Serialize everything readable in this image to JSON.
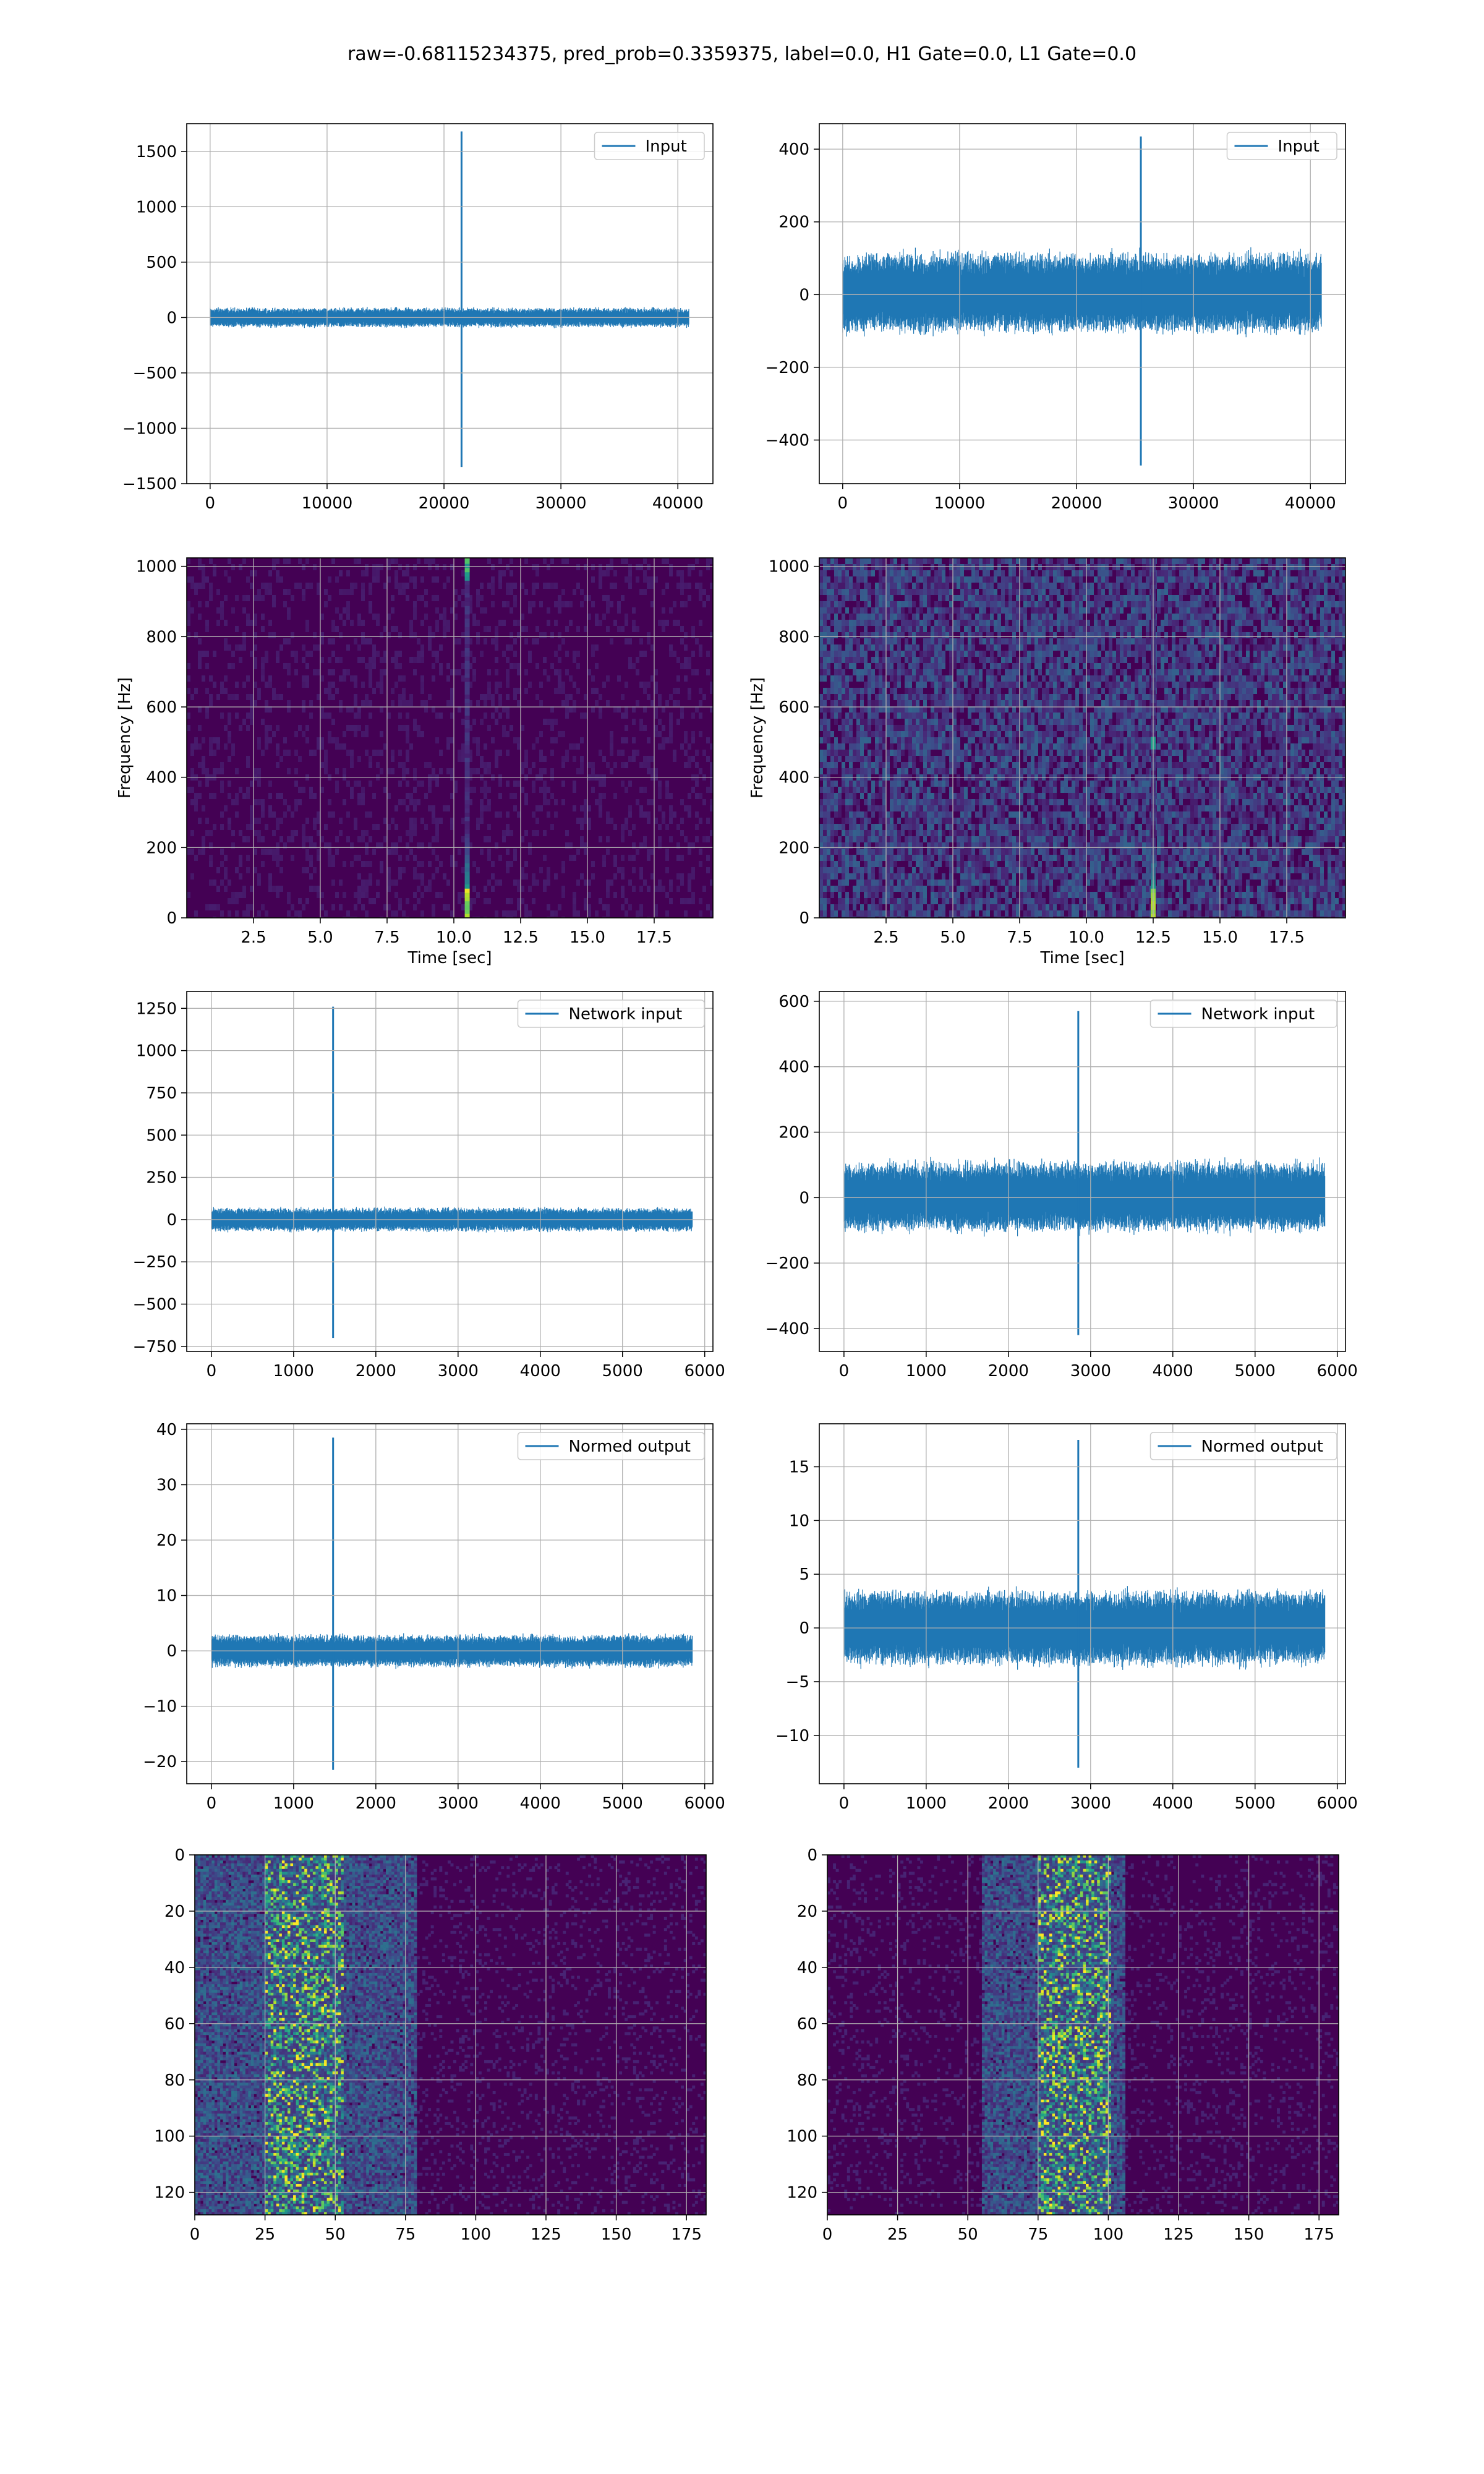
{
  "figure_title": "raw=-0.68115234375, pred_prob=0.3359375, label=0.0, H1 Gate=0.0, L1 Gate=0.0",
  "colors": {
    "line": "#1f77b4",
    "grid": "#b0b0b0",
    "viridis_bg": "#440154"
  },
  "chart_data": [
    {
      "id": "input-left",
      "type": "line",
      "legend": "Input",
      "legend_loc": "upper-right",
      "xlim": [
        -2000,
        43000
      ],
      "ylim": [
        -1500,
        1750
      ],
      "xticks": [
        0,
        10000,
        20000,
        30000,
        40000
      ],
      "yticks": [
        -1500,
        -1000,
        -500,
        0,
        500,
        1000,
        1500
      ],
      "noise_band": [
        -75,
        75
      ],
      "x_extent": [
        0,
        40960
      ],
      "spikes": [
        {
          "x": 21500,
          "ymin": -1350,
          "ymax": 1680
        }
      ]
    },
    {
      "id": "input-right",
      "type": "line",
      "legend": "Input",
      "legend_loc": "upper-right",
      "xlim": [
        -2000,
        43000
      ],
      "ylim": [
        -520,
        470
      ],
      "xticks": [
        0,
        10000,
        20000,
        30000,
        40000
      ],
      "yticks": [
        -400,
        -200,
        0,
        200,
        400
      ],
      "noise_band": [
        -90,
        100
      ],
      "x_extent": [
        0,
        40960
      ],
      "spikes": [
        {
          "x": 25500,
          "ymin": -470,
          "ymax": 435
        }
      ]
    },
    {
      "id": "spec-left",
      "type": "heatmap",
      "xlabel": "Time [sec]",
      "ylabel": "Frequency [Hz]",
      "xlim": [
        0,
        19.7
      ],
      "ylim": [
        0,
        1024
      ],
      "xticks": [
        2.5,
        5.0,
        7.5,
        10.0,
        12.5,
        15.0,
        17.5
      ],
      "yticks": [
        0,
        200,
        400,
        600,
        800,
        1000
      ],
      "burst_time": 10.5,
      "noise_level": 0.05
    },
    {
      "id": "spec-right",
      "type": "heatmap",
      "xlabel": "Time [sec]",
      "ylabel": "Frequency [Hz]",
      "xlim": [
        0,
        19.7
      ],
      "ylim": [
        0,
        1024
      ],
      "xticks": [
        2.5,
        5.0,
        7.5,
        10.0,
        12.5,
        15.0,
        17.5
      ],
      "yticks": [
        0,
        200,
        400,
        600,
        800,
        1000
      ],
      "burst_time": 12.5,
      "noise_level": 0.2
    },
    {
      "id": "network-left",
      "type": "line",
      "legend": "Network input",
      "legend_loc": "upper-right",
      "xlim": [
        -300,
        6100
      ],
      "ylim": [
        -780,
        1350
      ],
      "xticks": [
        0,
        1000,
        2000,
        3000,
        4000,
        5000,
        6000
      ],
      "yticks": [
        -750,
        -500,
        -250,
        0,
        250,
        500,
        750,
        1000,
        1250
      ],
      "noise_band": [
        -60,
        60
      ],
      "x_extent": [
        0,
        5850
      ],
      "spikes": [
        {
          "x": 1480,
          "ymin": -700,
          "ymax": 1260
        }
      ]
    },
    {
      "id": "network-right",
      "type": "line",
      "legend": "Network input",
      "legend_loc": "upper-right",
      "xlim": [
        -300,
        6100
      ],
      "ylim": [
        -470,
        630
      ],
      "xticks": [
        0,
        1000,
        2000,
        3000,
        4000,
        5000,
        6000
      ],
      "yticks": [
        -400,
        -200,
        0,
        200,
        400,
        600
      ],
      "noise_band": [
        -90,
        95
      ],
      "x_extent": [
        0,
        5850
      ],
      "spikes": [
        {
          "x": 2850,
          "ymin": -420,
          "ymax": 570
        }
      ]
    },
    {
      "id": "normed-left",
      "type": "line",
      "legend": "Normed output",
      "legend_loc": "upper-right",
      "xlim": [
        -300,
        6100
      ],
      "ylim": [
        -24,
        41
      ],
      "xticks": [
        0,
        1000,
        2000,
        3000,
        4000,
        5000,
        6000
      ],
      "yticks": [
        -20,
        -10,
        0,
        10,
        20,
        30,
        40
      ],
      "noise_band": [
        -2.5,
        2.5
      ],
      "x_extent": [
        0,
        5850
      ],
      "spikes": [
        {
          "x": 1480,
          "ymin": -21.5,
          "ymax": 38.5
        }
      ]
    },
    {
      "id": "normed-right",
      "type": "line",
      "legend": "Normed output",
      "legend_loc": "upper-right",
      "xlim": [
        -300,
        6100
      ],
      "ylim": [
        -14.5,
        19
      ],
      "xticks": [
        0,
        1000,
        2000,
        3000,
        4000,
        5000,
        6000
      ],
      "yticks": [
        -10,
        -5,
        0,
        5,
        10,
        15
      ],
      "noise_band": [
        -3,
        3
      ],
      "x_extent": [
        0,
        5850
      ],
      "spikes": [
        {
          "x": 2850,
          "ymin": -13,
          "ymax": 17.5
        }
      ]
    },
    {
      "id": "feat-left",
      "type": "heatmap",
      "xlim": [
        0,
        182
      ],
      "ylim": [
        128,
        0
      ],
      "xticks": [
        0,
        25,
        50,
        75,
        100,
        125,
        150,
        175
      ],
      "yticks": [
        0,
        20,
        40,
        60,
        80,
        100,
        120
      ],
      "active_cols": [
        0,
        78
      ],
      "hot_cols": [
        25,
        52
      ]
    },
    {
      "id": "feat-right",
      "type": "heatmap",
      "xlim": [
        0,
        182
      ],
      "ylim": [
        128,
        0
      ],
      "xticks": [
        0,
        25,
        50,
        75,
        100,
        125,
        150,
        175
      ],
      "yticks": [
        0,
        20,
        40,
        60,
        80,
        100,
        120
      ],
      "active_cols": [
        55,
        105
      ],
      "hot_cols": [
        75,
        100
      ]
    }
  ]
}
